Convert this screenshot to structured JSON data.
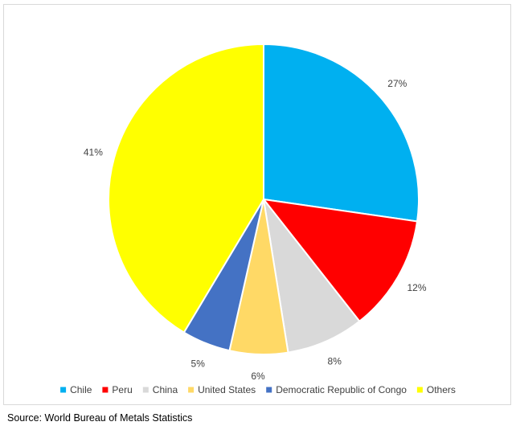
{
  "chart_data": {
    "type": "pie",
    "categories": [
      "Chile",
      "Peru",
      "China",
      "United States",
      "Democratic Republic of Congo",
      "Others"
    ],
    "values": [
      27,
      12,
      8,
      6,
      5,
      41
    ],
    "data_labels": [
      "27%",
      "12%",
      "8%",
      "6%",
      "5%",
      "41%"
    ],
    "colors": [
      "#00b0f0",
      "#ff0000",
      "#d9d9d9",
      "#ffd966",
      "#4472c4",
      "#ffff00"
    ],
    "legend_position": "bottom",
    "start_angle": "12 o'clock",
    "direction": "clockwise",
    "title": ""
  },
  "source": {
    "text": "Source: World Bureau of Metals Statistics"
  }
}
